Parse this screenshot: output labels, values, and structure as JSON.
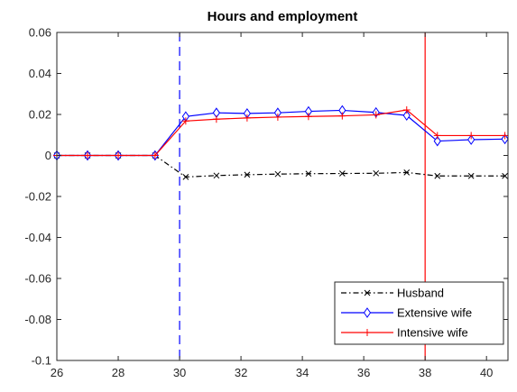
{
  "chart_data": {
    "type": "line",
    "title": "Hours and employment",
    "xlabel": "",
    "ylabel": "",
    "xlim": [
      26,
      40.7
    ],
    "ylim": [
      -0.1,
      0.06
    ],
    "xticks": [
      26,
      28,
      30,
      32,
      34,
      36,
      38,
      40
    ],
    "yticks": [
      -0.1,
      -0.08,
      -0.06,
      -0.04,
      -0.02,
      0,
      0.02,
      0.04,
      0.06
    ],
    "xtick_labels": [
      "26",
      "28",
      "30",
      "32",
      "34",
      "36",
      "38",
      "40"
    ],
    "ytick_labels": [
      "-0.1",
      "-0.08",
      "-0.06",
      "-0.04",
      "-0.02",
      "0",
      "0.02",
      "0.04",
      "0.06"
    ],
    "grid": false,
    "legend_position": "bottom-right",
    "x": [
      26,
      27,
      28,
      29.2,
      30.2,
      31.2,
      32.2,
      33.2,
      34.2,
      35.3,
      36.4,
      37.4,
      38.4,
      39.5,
      40.6
    ],
    "series": [
      {
        "name": "Husband",
        "color": "#000000",
        "line_style": "dash-dot",
        "marker": "x",
        "values": [
          0,
          0,
          0,
          0,
          -0.0105,
          -0.0098,
          -0.0094,
          -0.0091,
          -0.0089,
          -0.0088,
          -0.0087,
          -0.0083,
          -0.01,
          -0.01,
          -0.01
        ]
      },
      {
        "name": "Extensive wife",
        "color": "#0000ff",
        "line_style": "solid",
        "marker": "diamond",
        "values": [
          0,
          0,
          0,
          0,
          0.019,
          0.0208,
          0.0205,
          0.0208,
          0.0215,
          0.022,
          0.021,
          0.0195,
          0.007,
          0.0077,
          0.008
        ]
      },
      {
        "name": "Intensive wife",
        "color": "#ff0000",
        "line_style": "solid",
        "marker": "plus",
        "values": [
          0,
          0,
          0,
          0,
          0.0168,
          0.0177,
          0.0183,
          0.0187,
          0.019,
          0.0193,
          0.0198,
          0.0222,
          0.0097,
          0.0097,
          0.0097
        ]
      }
    ],
    "reference_lines": [
      {
        "x": 30.0,
        "color": "#0000ff",
        "line_style": "dashed"
      },
      {
        "x": 38.0,
        "color": "#ff0000",
        "line_style": "solid"
      }
    ]
  }
}
